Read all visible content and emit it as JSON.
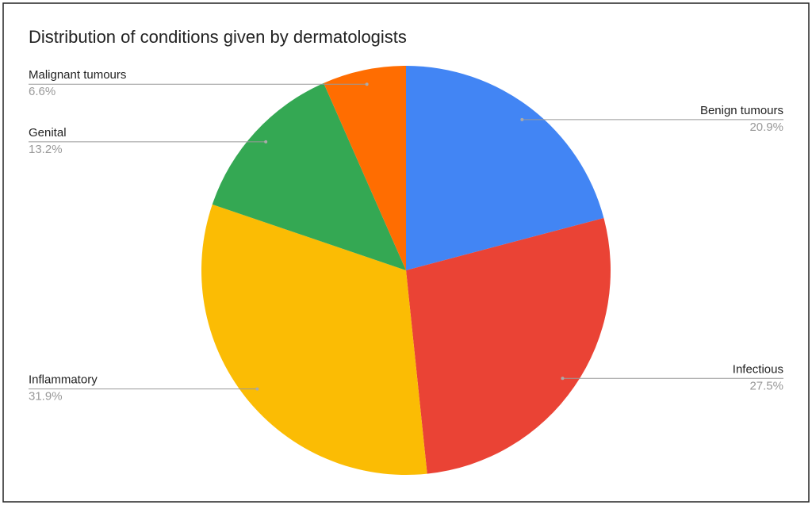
{
  "chart_data": {
    "type": "pie",
    "title": "Distribution of conditions given by dermatologists",
    "categories": [
      "Benign tumours",
      "Infectious",
      "Inflammatory",
      "Genital",
      "Malignant tumours"
    ],
    "values": [
      20.9,
      27.5,
      31.9,
      13.2,
      6.6
    ],
    "value_labels": [
      "20.9%",
      "27.5%",
      "31.9%",
      "13.2%",
      "6.6%"
    ],
    "colors": [
      "#4285f4",
      "#ea4335",
      "#fbbc04",
      "#34a853",
      "#ff6d01"
    ]
  }
}
